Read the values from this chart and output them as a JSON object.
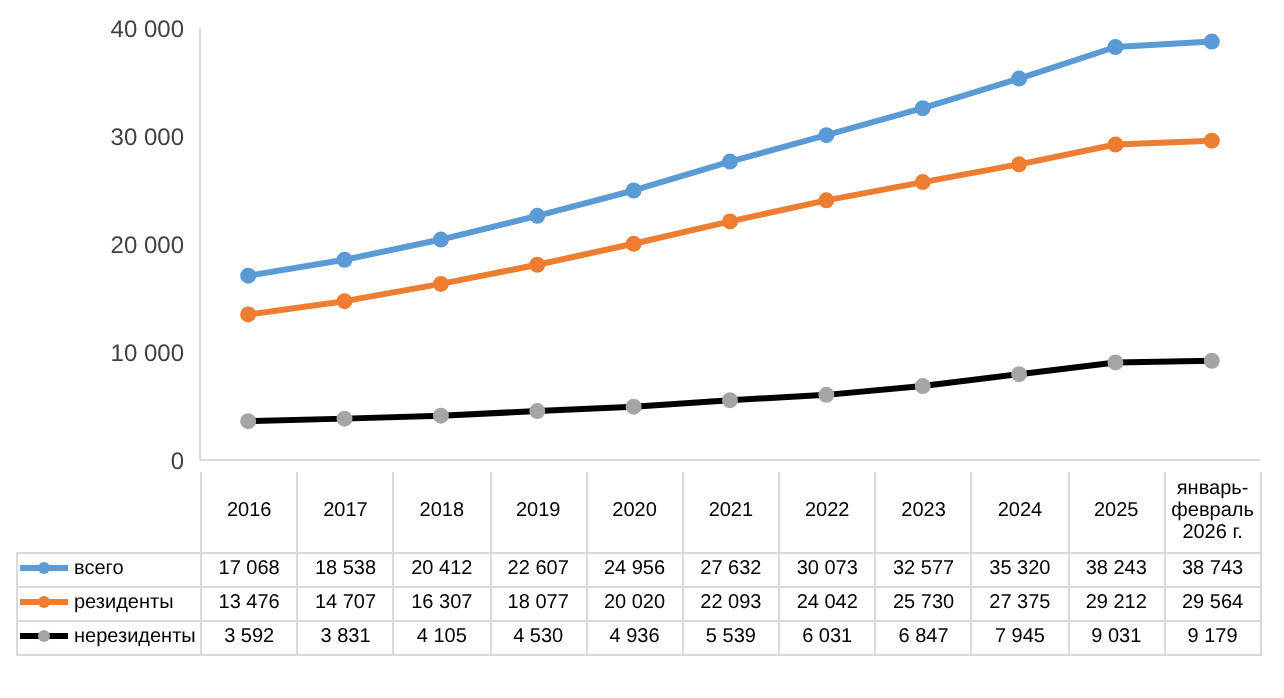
{
  "chart_data": {
    "type": "line",
    "categories": [
      "2016",
      "2017",
      "2018",
      "2019",
      "2020",
      "2021",
      "2022",
      "2023",
      "2024",
      "2025",
      "январь-февраль 2026  г."
    ],
    "series": [
      {
        "name": "всего",
        "color": "#5b9bd5",
        "values": [
          17068,
          18538,
          20412,
          22607,
          24956,
          27632,
          30073,
          32577,
          35320,
          38243,
          38743
        ]
      },
      {
        "name": "резиденты",
        "color": "#ed7d31",
        "values": [
          13476,
          14707,
          16307,
          18077,
          20020,
          22093,
          24042,
          25730,
          27375,
          29212,
          29564
        ]
      },
      {
        "name": "нерезиденты",
        "color": "#000000",
        "values": [
          3592,
          3831,
          4105,
          4530,
          4936,
          5539,
          6031,
          6847,
          7945,
          9031,
          9179
        ]
      }
    ],
    "ylim": [
      0,
      40000
    ],
    "yticks": [
      0,
      {
        "value": 10000,
        "label": "10 000"
      },
      {
        "value": 20000,
        "label": "20 000"
      },
      {
        "value": 30000,
        "label": "30 000"
      },
      {
        "value": 40000,
        "label": "40 000"
      }
    ],
    "grid": false,
    "legend": "bottom",
    "marker": "circle",
    "data_labels": true
  }
}
